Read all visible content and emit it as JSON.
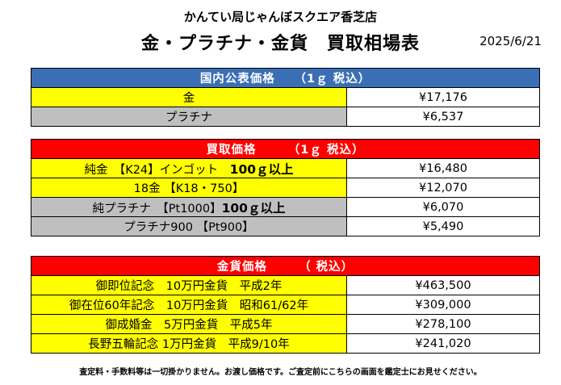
{
  "store_name": "かんてい局じゃんぼスクエア香芝店",
  "title": "金・プラチナ・金貨　買取相場表",
  "date": "2025/6/21",
  "domestic": {
    "header": "国内公表価格　　（1ｇ 税込）",
    "rows": [
      {
        "label": "金",
        "value": "¥17,176",
        "color": "yellow"
      },
      {
        "label": "プラチナ",
        "value": "¥6,537",
        "color": "gray"
      }
    ]
  },
  "purchase": {
    "header": "買取価格　　　（1ｇ 税込）",
    "rows": [
      {
        "label": "純金　【K24】インゴット　",
        "label_strong": "100ｇ以上",
        "value": "¥16,480",
        "color": "yellow"
      },
      {
        "label": "18金 【K18・750】",
        "label_strong": "",
        "value": "¥12,070",
        "color": "yellow"
      },
      {
        "label": "純プラチナ　【Pt1000】",
        "label_strong": "100ｇ以上",
        "value": "¥6,070",
        "color": "gray"
      },
      {
        "label": "プラチナ900 【Pt900】",
        "label_strong": "",
        "value": "¥5,490",
        "color": "gray"
      }
    ]
  },
  "coins": {
    "header": "金貨価格　　　（ 税込）",
    "rows": [
      {
        "label": "御即位記念　10万円金貨　平成2年",
        "value": "¥463,500",
        "color": "yellow"
      },
      {
        "label": "御在位60年記念　10万円金貨　昭和61/62年",
        "value": "¥309,000",
        "color": "yellow"
      },
      {
        "label": "御成婚金　5万円金貨　平成5年",
        "value": "¥278,100",
        "color": "yellow"
      },
      {
        "label": "長野五輪記念 1万円金貨　平成9/10年",
        "value": "¥241,020",
        "color": "yellow"
      }
    ]
  },
  "footer_note": "査定料・手数料等は一切掛かりません。お渡し価格です。ご査定前にこちらの画面を鑑定士にお見せください。"
}
